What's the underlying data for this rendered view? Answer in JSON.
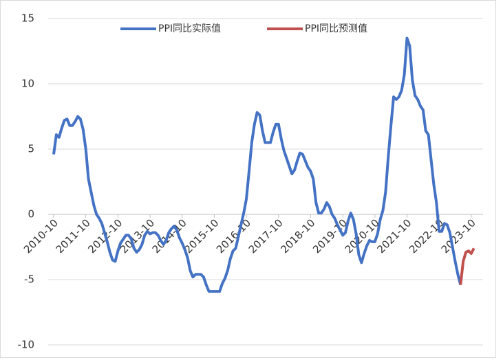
{
  "chart_data": {
    "type": "line",
    "categories": [
      "2010-10",
      null,
      null,
      null,
      null,
      null,
      null,
      null,
      null,
      null,
      null,
      null,
      "2011-10",
      null,
      null,
      null,
      null,
      null,
      null,
      null,
      null,
      null,
      null,
      null,
      "2012-10",
      null,
      null,
      null,
      null,
      null,
      null,
      null,
      null,
      null,
      null,
      null,
      "2013-10",
      null,
      null,
      null,
      null,
      null,
      null,
      null,
      null,
      null,
      null,
      null,
      "2014-10",
      null,
      null,
      null,
      null,
      null,
      null,
      null,
      null,
      null,
      null,
      null,
      "2015-10",
      null,
      null,
      null,
      null,
      null,
      null,
      null,
      null,
      null,
      null,
      null,
      "2016-10",
      null,
      null,
      null,
      null,
      null,
      null,
      null,
      null,
      null,
      null,
      null,
      "2017-10",
      null,
      null,
      null,
      null,
      null,
      null,
      null,
      null,
      null,
      null,
      null,
      "2018-10",
      null,
      null,
      null,
      null,
      null,
      null,
      null,
      null,
      null,
      null,
      null,
      "2019-10",
      null,
      null,
      null,
      null,
      null,
      null,
      null,
      null,
      null,
      null,
      null,
      "2020-10",
      null,
      null,
      null,
      null,
      null,
      null,
      null,
      null,
      null,
      null,
      null,
      "2021-10",
      null,
      null,
      null,
      null,
      null,
      null,
      null,
      null,
      null,
      null,
      null,
      "2022-10",
      null,
      null,
      null,
      null,
      null,
      null,
      null,
      null,
      null,
      null,
      null,
      "2023-10",
      null
    ],
    "series": [
      {
        "name": "PPI同比实际值",
        "color": "#4472c4",
        "values": [
          4.6,
          6.1,
          5.9,
          6.6,
          7.2,
          7.3,
          6.8,
          6.8,
          7.1,
          7.5,
          7.3,
          6.5,
          5.0,
          2.7,
          1.7,
          0.7,
          0.0,
          -0.3,
          -0.7,
          -1.4,
          -2.1,
          -2.9,
          -3.5,
          -3.6,
          -2.8,
          -2.2,
          -1.9,
          -1.6,
          -1.6,
          -1.9,
          -2.6,
          -2.9,
          -2.7,
          -2.3,
          -1.6,
          -1.3,
          -1.5,
          -1.4,
          -1.4,
          -1.6,
          -2.0,
          -2.3,
          -2.0,
          -1.4,
          -1.1,
          -0.9,
          -1.2,
          -1.8,
          -2.2,
          -2.7,
          -3.3,
          -4.3,
          -4.8,
          -4.6,
          -4.6,
          -4.6,
          -4.8,
          -5.4,
          -5.9,
          -5.9,
          -5.9,
          -5.9,
          -5.9,
          -5.3,
          -4.9,
          -4.3,
          -3.4,
          -2.8,
          -2.6,
          -1.7,
          -0.8,
          0.1,
          1.2,
          3.3,
          5.5,
          6.9,
          7.8,
          7.6,
          6.4,
          5.5,
          5.5,
          5.5,
          6.3,
          6.9,
          6.9,
          5.8,
          4.9,
          4.3,
          3.7,
          3.1,
          3.4,
          4.1,
          4.7,
          4.6,
          4.1,
          3.6,
          3.3,
          2.7,
          0.9,
          0.1,
          0.1,
          0.4,
          0.9,
          0.6,
          0.0,
          -0.3,
          -0.8,
          -1.2,
          -1.6,
          -1.4,
          -0.5,
          0.1,
          -0.4,
          -1.5,
          -3.1,
          -3.7,
          -3.0,
          -2.4,
          -2.0,
          -2.1,
          -2.1,
          -1.5,
          -0.4,
          0.3,
          1.7,
          4.4,
          6.8,
          9.0,
          8.8,
          9.0,
          9.5,
          10.7,
          13.5,
          12.9,
          10.3,
          9.1,
          8.8,
          8.3,
          8.0,
          6.4,
          6.1,
          4.2,
          2.3,
          0.9,
          -1.3,
          -1.3,
          -0.7,
          -0.8,
          -1.4,
          -2.5,
          -3.6,
          -4.6,
          -5.4,
          null,
          null,
          null,
          null,
          null
        ]
      },
      {
        "name": "PPI同比预测值",
        "color": "#c0504d",
        "values": [
          null,
          null,
          null,
          null,
          null,
          null,
          null,
          null,
          null,
          null,
          null,
          null,
          null,
          null,
          null,
          null,
          null,
          null,
          null,
          null,
          null,
          null,
          null,
          null,
          null,
          null,
          null,
          null,
          null,
          null,
          null,
          null,
          null,
          null,
          null,
          null,
          null,
          null,
          null,
          null,
          null,
          null,
          null,
          null,
          null,
          null,
          null,
          null,
          null,
          null,
          null,
          null,
          null,
          null,
          null,
          null,
          null,
          null,
          null,
          null,
          null,
          null,
          null,
          null,
          null,
          null,
          null,
          null,
          null,
          null,
          null,
          null,
          null,
          null,
          null,
          null,
          null,
          null,
          null,
          null,
          null,
          null,
          null,
          null,
          null,
          null,
          null,
          null,
          null,
          null,
          null,
          null,
          null,
          null,
          null,
          null,
          null,
          null,
          null,
          null,
          null,
          null,
          null,
          null,
          null,
          null,
          null,
          null,
          null,
          null,
          null,
          null,
          null,
          null,
          null,
          null,
          null,
          null,
          null,
          null,
          null,
          null,
          null,
          null,
          null,
          null,
          null,
          null,
          null,
          null,
          null,
          null,
          null,
          null,
          null,
          null,
          null,
          null,
          null,
          null,
          null,
          null,
          null,
          null,
          null,
          null,
          null,
          null,
          null,
          null,
          null,
          null,
          -5.4,
          -3.6,
          -2.9,
          -2.8,
          -3.0,
          -2.6
        ]
      }
    ],
    "ylim": [
      -10,
      15
    ],
    "yticks": [
      -10,
      -5,
      0,
      5,
      10,
      15
    ],
    "grid": true
  }
}
